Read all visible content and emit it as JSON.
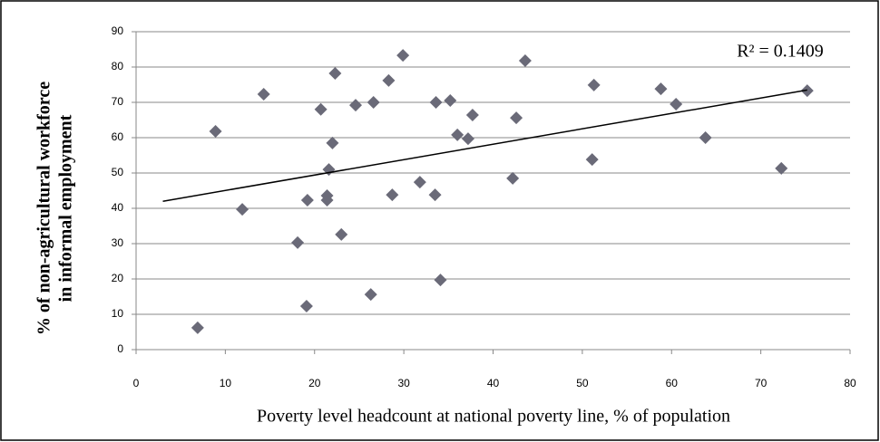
{
  "chart_data": {
    "type": "scatter",
    "x_label": "Poverty level headcount at national poverty line, % of population",
    "y_label": [
      "% of non-agricultural workforce",
      "in informal employment"
    ],
    "annotation": "R² = 0.1409",
    "color": "#6a6a78",
    "grid": true,
    "xlim": [
      0,
      80
    ],
    "xticks": [
      0,
      10,
      20,
      30,
      40,
      50,
      60,
      70,
      80
    ],
    "ylim": [
      0,
      90
    ],
    "yticks": [
      0,
      10,
      20,
      30,
      40,
      50,
      60,
      70,
      80,
      90
    ],
    "x": [
      6.9,
      8.9,
      14.3,
      11.9,
      18.1,
      19.1,
      19.2,
      20.7,
      21.4,
      21.4,
      21.6,
      22.0,
      22.3,
      23.0,
      24.6,
      26.3,
      26.6,
      28.3,
      28.7,
      29.9,
      31.8,
      33.6,
      33.5,
      34.1,
      35.2,
      36.0,
      37.2,
      37.7,
      42.2,
      42.6,
      43.6,
      51.1,
      51.3,
      58.8,
      60.5,
      63.8,
      72.3,
      75.2
    ],
    "values": [
      6.2,
      61.8,
      72.3,
      39.7,
      30.3,
      12.3,
      42.3,
      68.0,
      43.6,
      42.3,
      51.0,
      58.5,
      78.2,
      32.6,
      69.2,
      15.6,
      70.0,
      76.2,
      43.8,
      83.3,
      47.4,
      70.0,
      43.8,
      19.7,
      70.5,
      60.8,
      59.7,
      66.4,
      48.5,
      65.6,
      81.8,
      53.8,
      74.9,
      73.8,
      69.5,
      60.0,
      51.3,
      73.3
    ],
    "trendline": {
      "x": [
        3,
        75.2
      ],
      "y": [
        42,
        73.5
      ]
    }
  }
}
